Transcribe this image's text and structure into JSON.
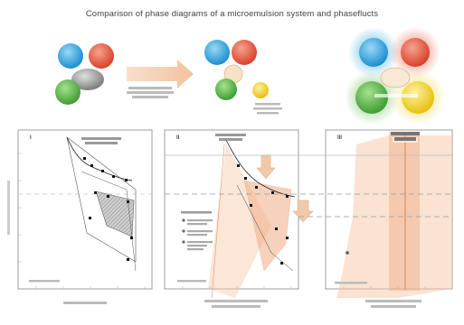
{
  "title": "Comparison of phase diagrams of a microemulsion system and phaseflucts",
  "top_row": {
    "arrow_note_left": [
      "...",
      "...",
      "..."
    ],
    "arrow_note_right": [
      "...",
      "...",
      "..."
    ]
  },
  "panels": [
    {
      "roman": "I",
      "heading": "",
      "xlabel": "",
      "note": ""
    },
    {
      "roman": "II",
      "heading": "",
      "xlabel": "",
      "note": ""
    },
    {
      "roman": "III",
      "heading": "",
      "xlabel": "",
      "note": ""
    }
  ],
  "colors": {
    "blue": "#2aa7e0",
    "red": "#e8553a",
    "green": "#5cb84a",
    "yellow": "#f3d21f",
    "gray": "#9a9a9a",
    "peach": "#f6c7a8",
    "peach_dark": "#e9a97d",
    "arrow": "#f2c9a8"
  }
}
